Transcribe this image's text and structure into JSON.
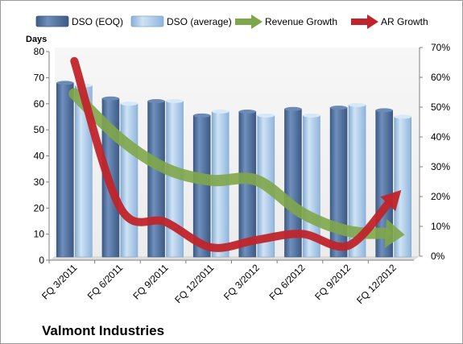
{
  "chart_data": {
    "type": "bar",
    "title": "",
    "company": "Valmont Industries",
    "ylabel": "Days",
    "y2label": "",
    "categories": [
      "FQ 3/2011",
      "FQ 6/2011",
      "FQ 9/2011",
      "FQ 12/2011",
      "FQ 3/2012",
      "FQ 6/2012",
      "FQ 9/2012",
      "FQ 12/2012"
    ],
    "ylim": [
      0,
      80
    ],
    "y_ticks": [
      "0",
      "10",
      "20",
      "30",
      "40",
      "50",
      "60",
      "70",
      "80"
    ],
    "y2lim": [
      0,
      70
    ],
    "y2_ticks": [
      "0%",
      "10%",
      "20%",
      "30%",
      "40%",
      "50%",
      "60%",
      "70%"
    ],
    "bar_series": [
      {
        "name": "DSO (EOQ)",
        "color": "#4f6f99",
        "values": [
          68,
          62,
          61,
          55.5,
          57,
          58,
          58.5,
          57.5
        ]
      },
      {
        "name": "DSO (average)",
        "color": "#a8c8e6",
        "values": [
          67,
          60,
          61,
          57,
          55.5,
          55.5,
          59.5,
          55
        ]
      }
    ],
    "line_series": [
      {
        "name": "Revenue Growth",
        "color": "#7fa64a",
        "axis": "right",
        "values": [
          55,
          40,
          30,
          26,
          26,
          15,
          9,
          8
        ]
      },
      {
        "name": "AR Growth",
        "color": "#c0242a",
        "axis": "right",
        "values": [
          66,
          17,
          12,
          3.5,
          6,
          8,
          4,
          20
        ]
      }
    ],
    "legend_position": "top",
    "grid": false
  }
}
